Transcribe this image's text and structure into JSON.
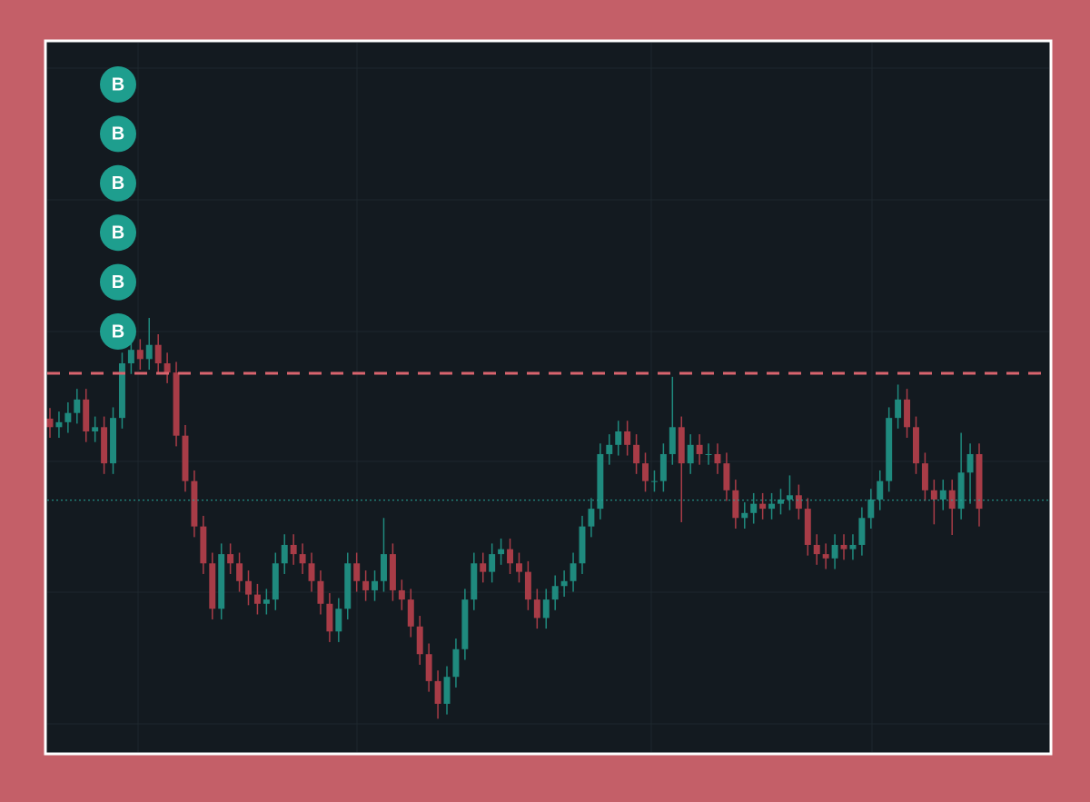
{
  "chart_data": {
    "type": "candlestick",
    "open": [
      47.0,
      45.8,
      46.5,
      47.8,
      49.7,
      45.2,
      45.8,
      40.7,
      47.1,
      54.8,
      56.7,
      55.4,
      57.4,
      54.8,
      53.5,
      44.6,
      38.2,
      31.8,
      26.6,
      20.2,
      27.9,
      26.6,
      24.1,
      22.2,
      20.9,
      21.5,
      26.6,
      29.2,
      27.9,
      26.6,
      24.1,
      20.9,
      17.0,
      20.2,
      26.6,
      24.1,
      22.8,
      24.1,
      27.9,
      22.8,
      21.5,
      17.7,
      13.8,
      10.0,
      6.8,
      10.6,
      14.5,
      21.5,
      26.6,
      25.4,
      27.9,
      28.6,
      26.6,
      25.4,
      21.5,
      18.9,
      21.5,
      23.4,
      24.1,
      26.6,
      31.8,
      34.3,
      42.0,
      43.3,
      45.2,
      43.3,
      40.7,
      38.2,
      38.2,
      42.0,
      45.8,
      40.7,
      43.3,
      42.0,
      42.0,
      40.7,
      36.9,
      33.0,
      33.7,
      35.0,
      34.3,
      35.0,
      35.6,
      36.2,
      34.3,
      29.2,
      27.9,
      27.3,
      29.2,
      28.6,
      29.2,
      33.0,
      35.6,
      38.2,
      47.1,
      49.7,
      45.8,
      40.7,
      36.9,
      35.6,
      36.9,
      34.3,
      39.4,
      42.0
    ],
    "high": [
      48.5,
      48.0,
      49.3,
      51.2,
      51.2,
      47.3,
      47.3,
      48.6,
      56.3,
      58.2,
      58.2,
      61.2,
      58.9,
      56.3,
      55.0,
      46.1,
      39.7,
      33.3,
      28.1,
      29.4,
      29.4,
      28.1,
      25.6,
      23.7,
      23.0,
      28.1,
      30.7,
      30.7,
      29.4,
      28.1,
      25.6,
      22.4,
      21.7,
      28.1,
      28.1,
      25.6,
      25.6,
      33.0,
      29.4,
      24.3,
      23.0,
      19.2,
      15.3,
      11.5,
      12.1,
      16.0,
      23.0,
      28.1,
      28.1,
      29.4,
      30.1,
      30.1,
      28.1,
      26.9,
      23.0,
      23.0,
      24.9,
      25.6,
      28.1,
      33.3,
      35.8,
      43.5,
      44.8,
      46.7,
      46.7,
      44.8,
      42.2,
      39.7,
      43.5,
      52.9,
      47.3,
      44.8,
      44.8,
      43.5,
      43.5,
      42.2,
      38.4,
      35.2,
      36.5,
      36.5,
      36.5,
      37.1,
      39.0,
      37.7,
      35.8,
      30.7,
      29.4,
      30.7,
      30.7,
      30.7,
      34.5,
      37.1,
      39.7,
      48.6,
      51.8,
      51.2,
      47.3,
      42.2,
      38.4,
      38.4,
      38.4,
      45.0,
      43.5,
      43.5
    ],
    "low": [
      44.3,
      44.3,
      45.0,
      46.3,
      43.7,
      43.7,
      39.2,
      39.2,
      45.6,
      53.3,
      53.9,
      53.9,
      53.3,
      52.0,
      43.1,
      36.7,
      30.3,
      25.1,
      18.7,
      18.7,
      25.1,
      22.6,
      20.7,
      19.4,
      19.4,
      20.0,
      25.1,
      26.4,
      25.1,
      22.6,
      19.4,
      15.5,
      15.5,
      18.7,
      22.6,
      21.3,
      21.3,
      22.6,
      21.3,
      20.0,
      16.2,
      12.3,
      8.5,
      4.7,
      5.3,
      9.1,
      13.0,
      20.0,
      23.9,
      23.9,
      26.4,
      25.1,
      23.9,
      20.0,
      17.4,
      17.4,
      20.0,
      21.9,
      22.6,
      25.1,
      30.3,
      32.8,
      40.5,
      41.8,
      41.8,
      39.2,
      36.7,
      36.7,
      36.7,
      40.5,
      32.4,
      39.2,
      40.5,
      40.5,
      39.2,
      35.4,
      31.5,
      31.5,
      32.2,
      32.8,
      32.8,
      33.5,
      34.1,
      32.8,
      27.7,
      26.4,
      25.8,
      25.8,
      27.1,
      27.1,
      27.7,
      31.5,
      34.1,
      36.7,
      45.6,
      44.3,
      39.2,
      35.4,
      32.1,
      34.1,
      30.6,
      32.8,
      35.0,
      31.8
    ],
    "close": [
      45.8,
      46.5,
      47.8,
      49.7,
      45.2,
      45.8,
      40.7,
      47.1,
      54.8,
      56.7,
      55.4,
      57.4,
      54.8,
      53.5,
      44.6,
      38.2,
      31.8,
      26.6,
      20.2,
      27.9,
      26.6,
      24.1,
      22.2,
      20.9,
      21.5,
      26.6,
      29.2,
      27.9,
      26.6,
      24.1,
      20.9,
      17.0,
      20.2,
      26.6,
      24.1,
      22.8,
      24.1,
      27.9,
      22.8,
      21.5,
      17.7,
      13.8,
      10.0,
      6.8,
      10.6,
      14.5,
      21.5,
      26.6,
      25.4,
      27.9,
      28.6,
      26.6,
      25.4,
      21.5,
      18.9,
      21.5,
      23.4,
      24.1,
      26.6,
      31.8,
      34.3,
      42.0,
      43.3,
      45.2,
      43.3,
      40.7,
      38.2,
      38.2,
      42.0,
      45.8,
      40.7,
      43.3,
      42.0,
      42.0,
      40.7,
      36.9,
      33.0,
      33.7,
      35.0,
      34.3,
      35.0,
      35.6,
      36.2,
      34.3,
      29.2,
      27.9,
      27.3,
      29.2,
      28.6,
      29.2,
      33.0,
      35.6,
      38.2,
      47.1,
      49.7,
      45.8,
      40.7,
      36.9,
      35.6,
      36.9,
      34.3,
      39.4,
      42.0,
      34.3
    ],
    "up_color": "#1f8a7e",
    "down_color": "#a83c47",
    "ylim": [
      0,
      100
    ],
    "grid": true,
    "hlines": [
      {
        "value": 53.4,
        "style": "dashed",
        "color": "#d9646e"
      },
      {
        "value": 35.5,
        "style": "dotted",
        "color": "#26a69a"
      }
    ],
    "markers": [
      {
        "label": "B"
      },
      {
        "label": "B"
      },
      {
        "label": "B"
      },
      {
        "label": "B"
      },
      {
        "label": "B"
      },
      {
        "label": "B"
      }
    ],
    "marker_color": "#1e9e8e"
  }
}
